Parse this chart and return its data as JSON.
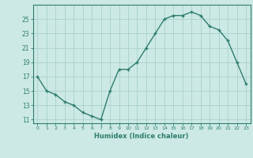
{
  "x": [
    0,
    1,
    2,
    3,
    4,
    5,
    6,
    7,
    8,
    9,
    10,
    11,
    12,
    13,
    14,
    15,
    16,
    17,
    18,
    19,
    20,
    21,
    22,
    23
  ],
  "y": [
    17,
    15,
    14.5,
    13.5,
    13,
    12,
    11.5,
    11,
    15,
    18,
    18,
    19,
    21,
    23,
    25,
    25.5,
    25.5,
    26,
    25.5,
    24,
    23.5,
    22,
    19,
    16
  ],
  "line_color": "#2e7d6e",
  "marker": "+",
  "bg_color": "#cce9e5",
  "grid_color": "#aed4cf",
  "xlabel": "Humidex (Indice chaleur)",
  "xlim": [
    -0.5,
    23.5
  ],
  "ylim": [
    10.5,
    27
  ],
  "yticks": [
    11,
    13,
    15,
    17,
    19,
    21,
    23,
    25
  ],
  "xticks": [
    0,
    1,
    2,
    3,
    4,
    5,
    6,
    7,
    8,
    9,
    10,
    11,
    12,
    13,
    14,
    15,
    16,
    17,
    18,
    19,
    20,
    21,
    22,
    23
  ]
}
